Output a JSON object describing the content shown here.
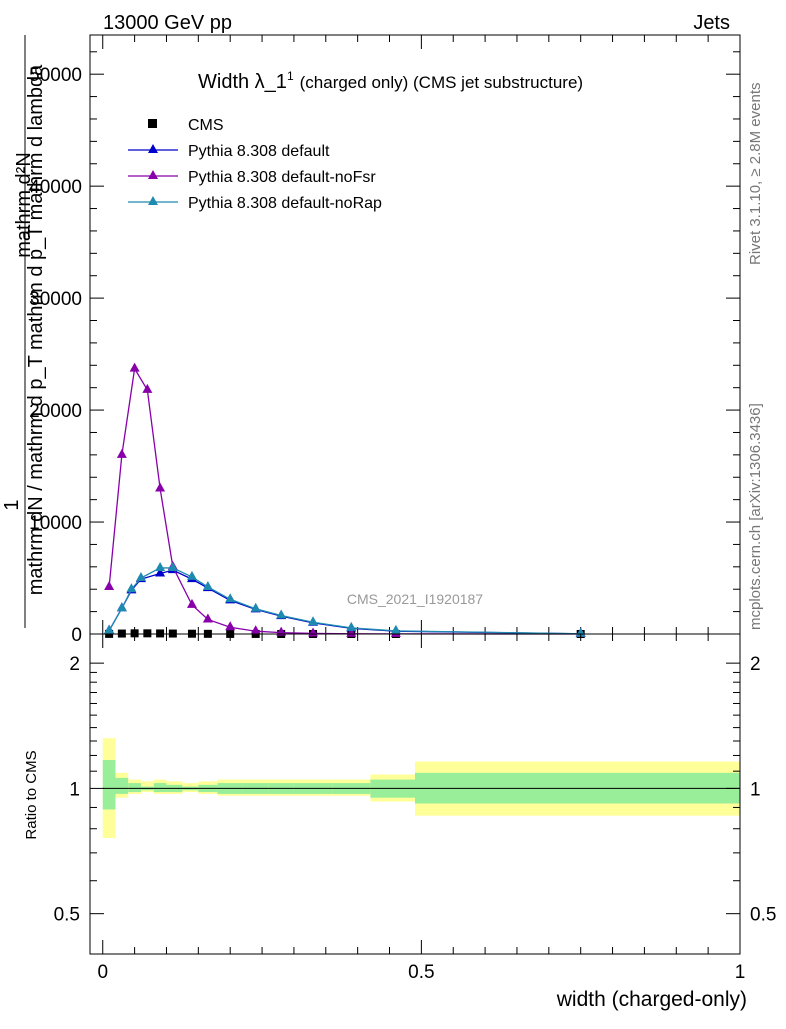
{
  "header": {
    "left": "13000 GeV pp",
    "right": "Jets"
  },
  "side_labels": {
    "rivet": "Rivet 3.1.10, ≥ 2.8M events",
    "mcplots": "mcplots.cern.ch [arXiv:1306.3436]"
  },
  "watermark": "CMS_2021_I1920187",
  "chart_data": [
    {
      "type": "line",
      "title": "Width λ_1",
      "title_sup": "1",
      "title_suffix": "(charged only) (CMS jet substructure)",
      "ylabel_numerator": "1",
      "ylabel_numerator_2": "mathrm d²N",
      "ylabel_denominator": "mathrm dN / mathrm d p_T mathrm d p_T mathrm d lambda",
      "ylim": [
        0,
        53500
      ],
      "yticks": [
        0,
        10000,
        20000,
        30000,
        40000,
        50000
      ],
      "ytick_labels": [
        "0",
        "10000",
        "20000",
        "30000",
        "40000",
        "50000"
      ],
      "xlim": [
        -0.02,
        1.0
      ],
      "grid": false,
      "legend_position": "top-left",
      "legend": [
        "CMS",
        "Pythia 8.308 default",
        "Pythia 8.308 default-noFsr",
        "Pythia 8.308 default-noRap"
      ],
      "series": [
        {
          "name": "CMS",
          "marker": "square",
          "color": "#000000",
          "x": [
            0.01,
            0.03,
            0.05,
            0.07,
            0.09,
            0.11,
            0.14,
            0.165,
            0.2,
            0.24,
            0.28,
            0.33,
            0.39,
            0.46,
            0.75
          ],
          "y": [
            10,
            40,
            60,
            60,
            50,
            40,
            25,
            15,
            8,
            4,
            2,
            1,
            0.5,
            0.2,
            0.01
          ]
        },
        {
          "name": "Pythia 8.308 default",
          "marker": "triangle",
          "color": "#0000cc",
          "x": [
            0.01,
            0.03,
            0.045,
            0.06,
            0.09,
            0.11,
            0.14,
            0.165,
            0.2,
            0.24,
            0.28,
            0.33,
            0.39,
            0.46,
            0.75
          ],
          "y": [
            300,
            2300,
            3900,
            4900,
            5400,
            5700,
            4900,
            4100,
            3000,
            2200,
            1600,
            1000,
            500,
            250,
            20
          ]
        },
        {
          "name": "Pythia 8.308 default-noFsr",
          "marker": "triangle",
          "color": "#8800aa",
          "x": [
            0.01,
            0.03,
            0.05,
            0.07,
            0.09,
            0.11,
            0.14,
            0.165,
            0.2,
            0.24,
            0.28,
            0.33,
            0.39,
            0.46,
            0.75
          ],
          "y": [
            4200,
            16000,
            23700,
            21800,
            13000,
            6000,
            2600,
            1300,
            600,
            250,
            120,
            50,
            20,
            8,
            1
          ]
        },
        {
          "name": "Pythia 8.308 default-noRap",
          "marker": "triangle",
          "color": "#1f8ab0",
          "x": [
            0.01,
            0.03,
            0.045,
            0.06,
            0.09,
            0.11,
            0.14,
            0.165,
            0.2,
            0.24,
            0.28,
            0.33,
            0.39,
            0.46,
            0.75
          ],
          "y": [
            300,
            2300,
            4000,
            5000,
            5900,
            5900,
            5100,
            4200,
            3100,
            2250,
            1650,
            1050,
            550,
            280,
            20
          ]
        }
      ]
    },
    {
      "type": "area",
      "ylabel": "Ratio to CMS",
      "xlabel": "width (charged-only)",
      "xlim": [
        -0.02,
        1.0
      ],
      "xticks": [
        0,
        0.5,
        1
      ],
      "xtick_labels": [
        "0",
        "0.5",
        "1"
      ],
      "ylim_log": [
        0.4,
        2.35
      ],
      "yticks": [
        0.5,
        1,
        2
      ],
      "ytick_labels": [
        "0.5",
        "1",
        "2"
      ],
      "right_ytick_labels": [
        "0.5",
        "1",
        "2"
      ],
      "reference_line": 1,
      "bins": [
        {
          "lo": 0.0,
          "hi": 0.02,
          "stat_lo": 0.89,
          "stat_hi": 1.17,
          "tot_lo": 0.76,
          "tot_hi": 1.32
        },
        {
          "lo": 0.02,
          "hi": 0.04,
          "stat_lo": 0.97,
          "stat_hi": 1.06,
          "tot_lo": 0.95,
          "tot_hi": 1.09
        },
        {
          "lo": 0.04,
          "hi": 0.06,
          "stat_lo": 0.98,
          "stat_hi": 1.03,
          "tot_lo": 0.97,
          "tot_hi": 1.05
        },
        {
          "lo": 0.06,
          "hi": 0.08,
          "stat_lo": 0.99,
          "stat_hi": 1.01,
          "tot_lo": 0.98,
          "tot_hi": 1.04
        },
        {
          "lo": 0.08,
          "hi": 0.1,
          "stat_lo": 0.98,
          "stat_hi": 1.03,
          "tot_lo": 0.97,
          "tot_hi": 1.05
        },
        {
          "lo": 0.1,
          "hi": 0.125,
          "stat_lo": 0.98,
          "stat_hi": 1.02,
          "tot_lo": 0.97,
          "tot_hi": 1.04
        },
        {
          "lo": 0.125,
          "hi": 0.15,
          "stat_lo": 0.99,
          "stat_hi": 1.01,
          "tot_lo": 0.98,
          "tot_hi": 1.03
        },
        {
          "lo": 0.15,
          "hi": 0.18,
          "stat_lo": 0.98,
          "stat_hi": 1.02,
          "tot_lo": 0.97,
          "tot_hi": 1.04
        },
        {
          "lo": 0.18,
          "hi": 0.22,
          "stat_lo": 0.97,
          "stat_hi": 1.03,
          "tot_lo": 0.96,
          "tot_hi": 1.05
        },
        {
          "lo": 0.22,
          "hi": 0.26,
          "stat_lo": 0.97,
          "stat_hi": 1.03,
          "tot_lo": 0.96,
          "tot_hi": 1.05
        },
        {
          "lo": 0.26,
          "hi": 0.3,
          "stat_lo": 0.97,
          "stat_hi": 1.03,
          "tot_lo": 0.96,
          "tot_hi": 1.05
        },
        {
          "lo": 0.3,
          "hi": 0.36,
          "stat_lo": 0.97,
          "stat_hi": 1.03,
          "tot_lo": 0.96,
          "tot_hi": 1.05
        },
        {
          "lo": 0.36,
          "hi": 0.42,
          "stat_lo": 0.97,
          "stat_hi": 1.03,
          "tot_lo": 0.96,
          "tot_hi": 1.05
        },
        {
          "lo": 0.42,
          "hi": 0.49,
          "stat_lo": 0.95,
          "stat_hi": 1.05,
          "tot_lo": 0.93,
          "tot_hi": 1.08
        },
        {
          "lo": 0.49,
          "hi": 1.0,
          "stat_lo": 0.92,
          "stat_hi": 1.09,
          "tot_lo": 0.86,
          "tot_hi": 1.16
        }
      ],
      "stat_color": "#99ee99",
      "total_color": "#ffff99"
    }
  ]
}
